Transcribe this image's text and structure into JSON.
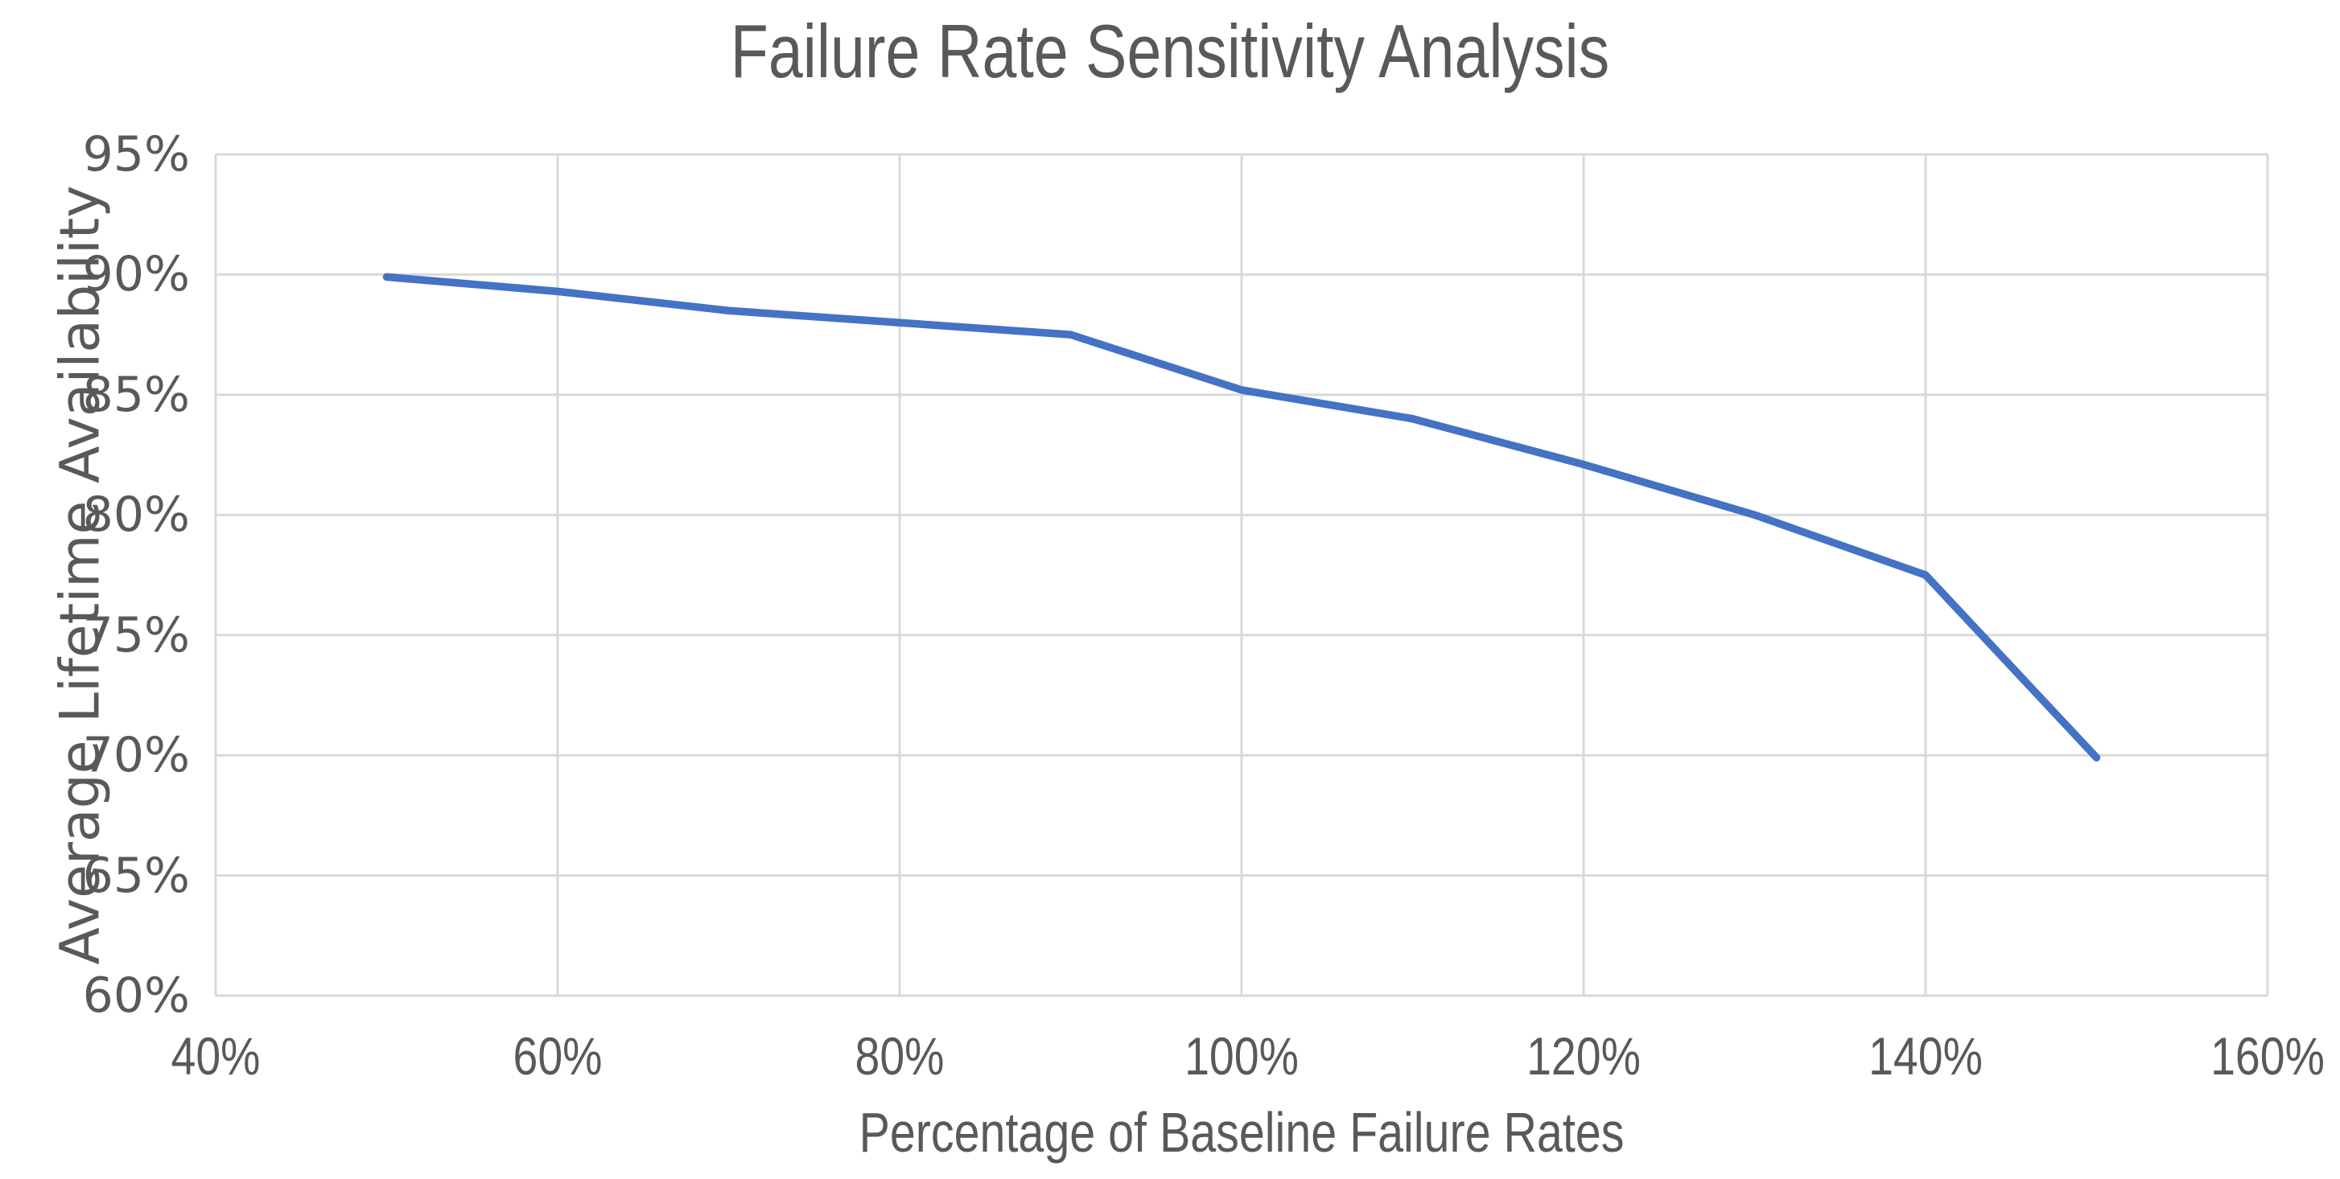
{
  "chart": {
    "title": "Failure Rate Sensitivity Analysis",
    "x_axis_title": "Percentage of Baseline Failure Rates",
    "y_axis_title": "Average Lifetime Availability",
    "colors": {
      "line": "#4472C4",
      "gridline": "#D9D9D9",
      "text": "#595959",
      "background": "#FFFFFF"
    }
  },
  "chart_data": {
    "type": "line",
    "title": "Failure Rate Sensitivity Analysis",
    "xlabel": "Percentage of Baseline Failure Rates",
    "ylabel": "Average Lifetime Availability",
    "x": [
      50,
      60,
      70,
      80,
      90,
      100,
      110,
      120,
      130,
      140,
      150
    ],
    "y": [
      89.9,
      89.3,
      88.5,
      88.0,
      87.5,
      85.2,
      84.0,
      82.1,
      80.0,
      77.5,
      69.9
    ],
    "xlim": [
      40,
      160
    ],
    "ylim": [
      60,
      95
    ],
    "x_tick_values": [
      40,
      60,
      80,
      100,
      120,
      140,
      160
    ],
    "x_ticks": [
      "40%",
      "60%",
      "80%",
      "100%",
      "120%",
      "140%",
      "160%"
    ],
    "y_tick_values": [
      60,
      65,
      70,
      75,
      80,
      85,
      90,
      95
    ],
    "y_ticks": [
      "60%",
      "65%",
      "70%",
      "75%",
      "80%",
      "85%",
      "90%",
      "95%"
    ],
    "grid": true,
    "legend": false,
    "marker": "none"
  }
}
